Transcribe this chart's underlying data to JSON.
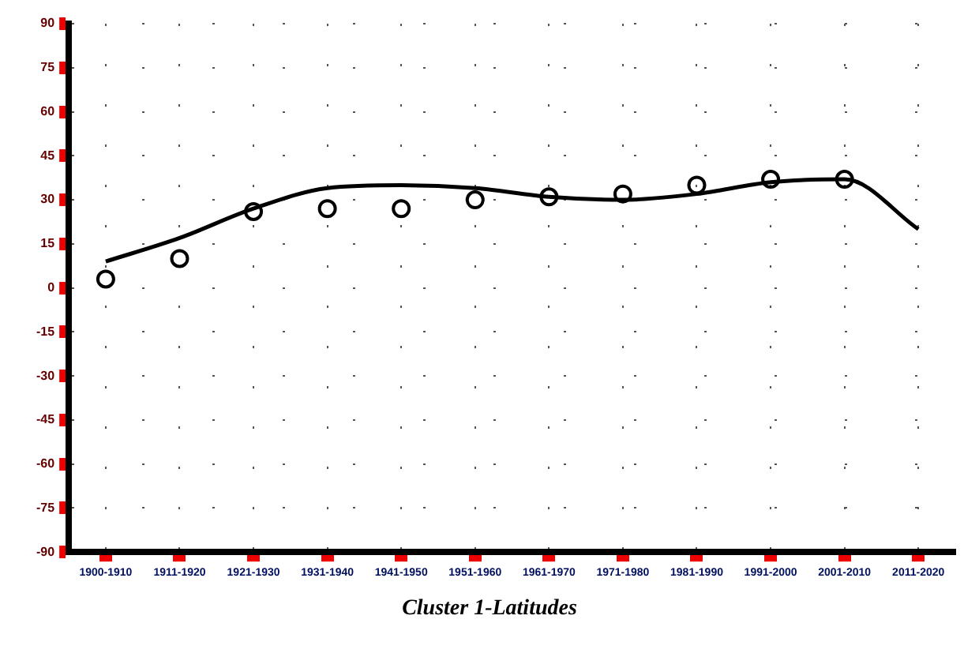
{
  "chart_data": {
    "type": "scatter",
    "title": "Cluster 1-Latitudes",
    "categories": [
      "1900-1910",
      "1911-1920",
      "1921-1930",
      "1931-1940",
      "1941-1950",
      "1951-1960",
      "1961-1970",
      "1971-1980",
      "1981-1990",
      "1991-2000",
      "2001-2010",
      "2011-2020"
    ],
    "series": [
      {
        "color": "#000000",
        "marker": "circle",
        "values": [
          3,
          10,
          26,
          27,
          27,
          30,
          31,
          32,
          35,
          37,
          37,
          null
        ]
      },
      {
        "type": "line",
        "color": "#000000",
        "values": [
          9,
          17,
          27,
          34,
          35,
          34,
          31,
          30,
          32,
          36,
          37,
          20
        ]
      }
    ],
    "ylim": [
      -90,
      90
    ],
    "yticks": [
      -90,
      -75,
      -60,
      -45,
      -30,
      -15,
      0,
      15,
      30,
      45,
      60,
      75,
      90
    ],
    "grid": true,
    "legend": false
  }
}
